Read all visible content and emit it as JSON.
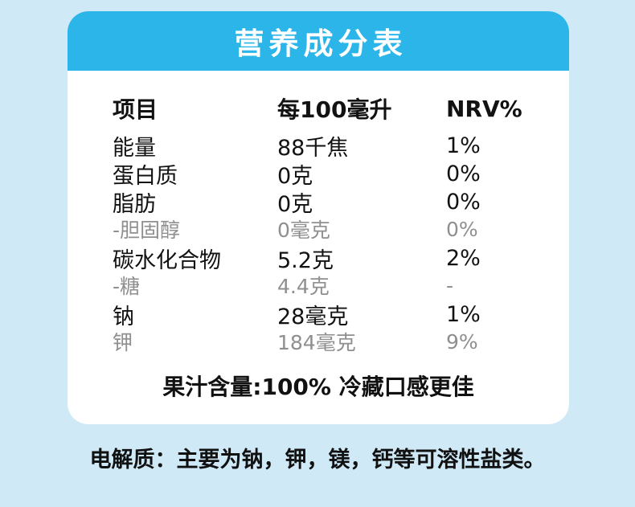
{
  "theme": {
    "page_background": "#cfe9f7",
    "card_background": "#ffffff",
    "header_background": "#2cb5e9",
    "header_text": "#ffffff",
    "text_color": "#121212",
    "muted_text_color": "#8f8f8f"
  },
  "title": "营养成分表",
  "table": {
    "columns": [
      "项目",
      "每100毫升",
      "NRV%"
    ],
    "rows": [
      {
        "item": "能量",
        "per100": "88千焦",
        "nrv": "1%",
        "muted": false
      },
      {
        "item": "蛋白质",
        "per100": "0克",
        "nrv": "0%",
        "muted": false
      },
      {
        "item": "脂肪",
        "per100": "0克",
        "nrv": "0%",
        "muted": false
      },
      {
        "item": "-胆固醇",
        "per100": "0毫克",
        "nrv": "0%",
        "muted": true
      },
      {
        "item": "碳水化合物",
        "per100": "5.2克",
        "nrv": "2%",
        "muted": false
      },
      {
        "item": "-糖",
        "per100": "4.4克",
        "nrv": "-",
        "muted": true
      },
      {
        "item": "钠",
        "per100": "28毫克",
        "nrv": "1%",
        "muted": false
      },
      {
        "item": "钾",
        "per100": "184毫克",
        "nrv": "9%",
        "muted": true
      }
    ]
  },
  "footer_note": "果汁含量:100% 冷藏口感更佳",
  "bottom_note": "电解质：主要为钠，钾，镁，钙等可溶性盐类。"
}
